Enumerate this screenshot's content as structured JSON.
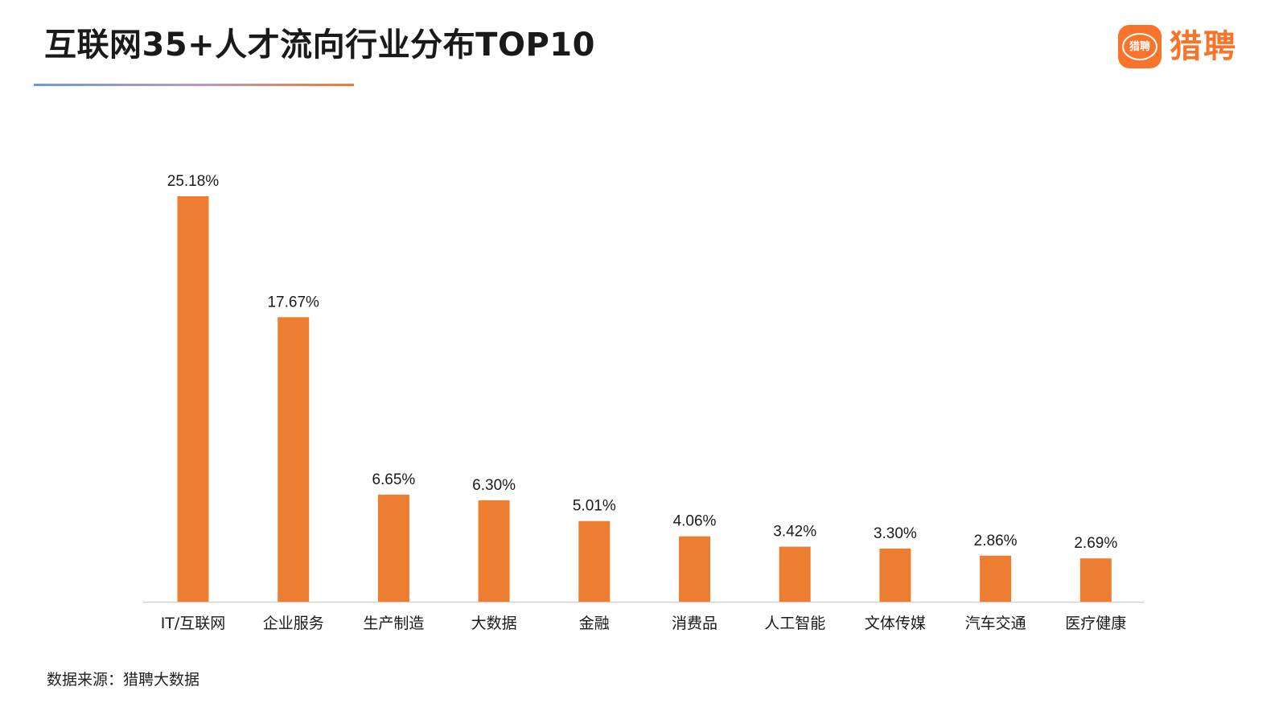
{
  "header": {
    "title": "互联网35+人才流向行业分布TOP10",
    "brand_badge_text": "猎聘",
    "brand_name": "猎聘"
  },
  "colors": {
    "bar": "#ED7D31",
    "brand": "#F8742A",
    "axis": "#D0D0D0"
  },
  "chart_data": {
    "type": "bar",
    "title": "互联网35+人才流向行业分布TOP10",
    "categories": [
      "IT/互联网",
      "企业服务",
      "生产制造",
      "大数据",
      "金融",
      "消费品",
      "人工智能",
      "文体传媒",
      "汽车交通",
      "医疗健康"
    ],
    "values": [
      25.18,
      17.67,
      6.65,
      6.3,
      5.01,
      4.06,
      3.42,
      3.3,
      2.86,
      2.69
    ],
    "data_labels": [
      "25.18%",
      "17.67%",
      "6.65%",
      "6.30%",
      "5.01%",
      "4.06%",
      "3.42%",
      "3.30%",
      "2.86%",
      "2.69%"
    ],
    "ylim": [
      0,
      25.18
    ],
    "grid": false,
    "legend": "none"
  },
  "footer": {
    "source": "数据来源：猎聘大数据"
  }
}
